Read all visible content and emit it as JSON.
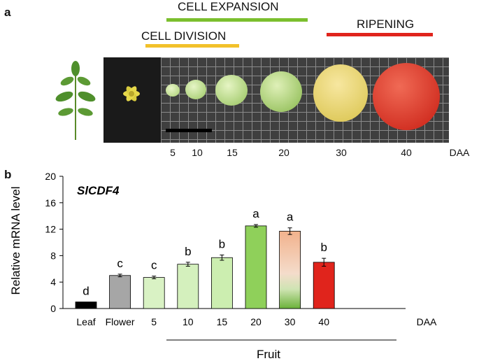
{
  "panel_a": {
    "letter": "a",
    "phases": [
      {
        "label": "CELL EXPANSION",
        "color": "#7bbf2e"
      },
      {
        "label": "CELL DIVISION",
        "color": "#f2c12a"
      },
      {
        "label": "RIPENING",
        "color": "#e0241c"
      }
    ],
    "daa_ticks": [
      "5",
      "10",
      "15",
      "20",
      "30",
      "40"
    ],
    "daa_unit": "DAA"
  },
  "panel_b": {
    "letter": "b",
    "gene_label": "SlCDF4",
    "group_label": "Fruit",
    "daa_unit": "DAA"
  },
  "chart_data": {
    "type": "bar",
    "ylabel": "Relative mRNA level",
    "xlabel": "",
    "ylim": [
      0,
      20
    ],
    "yticks": [
      0,
      4,
      8,
      12,
      16,
      20
    ],
    "categories": [
      "Leaf",
      "Flower",
      "5",
      "10",
      "15",
      "20",
      "30",
      "40"
    ],
    "values": [
      1.0,
      5.0,
      4.7,
      6.7,
      7.7,
      12.5,
      11.7,
      7.0
    ],
    "errors": [
      0.0,
      0.2,
      0.2,
      0.3,
      0.4,
      0.2,
      0.5,
      0.6
    ],
    "letters": [
      "d",
      "c",
      "c",
      "b",
      "b",
      "a",
      "a",
      "b"
    ],
    "colors": [
      "#000000",
      "#a6a6a6",
      "#d9f2c4",
      "#d4f0bd",
      "#cceeb0",
      "#8fd05a",
      "gradient-30",
      "#e0241c"
    ],
    "grid": false,
    "legend": "none"
  }
}
